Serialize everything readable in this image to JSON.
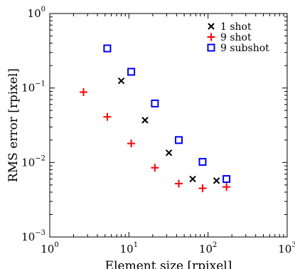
{
  "chart_data": {
    "type": "scatter",
    "title": "",
    "xlabel": "Element size [rpixel]",
    "ylabel": "RMS error [rpixel]",
    "xscale": "log",
    "yscale": "log",
    "xlim": [
      1,
      1000
    ],
    "ylim": [
      0.001,
      1
    ],
    "grid": false,
    "legend_position": "top-right",
    "x_ticks": [
      {
        "value": 1,
        "base": "10",
        "exp": "0"
      },
      {
        "value": 10,
        "base": "10",
        "exp": "1"
      },
      {
        "value": 100,
        "base": "10",
        "exp": "2"
      },
      {
        "value": 1000,
        "base": "10",
        "exp": "3"
      }
    ],
    "y_ticks": [
      {
        "value": 0.001,
        "base": "10",
        "exp": "−3"
      },
      {
        "value": 0.01,
        "base": "10",
        "exp": "−2"
      },
      {
        "value": 0.1,
        "base": "10",
        "exp": "−1"
      },
      {
        "value": 1,
        "base": "10",
        "exp": "0"
      }
    ],
    "series": [
      {
        "name": "1 shot",
        "marker": "x",
        "color": "#000000",
        "points": [
          [
            8,
            0.125
          ],
          [
            16,
            0.037
          ],
          [
            32,
            0.0135
          ],
          [
            64,
            0.006
          ],
          [
            128,
            0.0057
          ]
        ]
      },
      {
        "name": "9 shot",
        "marker": "+",
        "color": "#ff0000",
        "points": [
          [
            2.67,
            0.088
          ],
          [
            5.33,
            0.041
          ],
          [
            10.7,
            0.018
          ],
          [
            21.3,
            0.0085
          ],
          [
            42.7,
            0.0052
          ],
          [
            85.3,
            0.0045
          ],
          [
            171,
            0.0047
          ]
        ]
      },
      {
        "name": "9 subshot",
        "marker": "square",
        "color": "#0000ff",
        "points": [
          [
            5.33,
            0.34
          ],
          [
            10.7,
            0.165
          ],
          [
            21.3,
            0.062
          ],
          [
            42.7,
            0.02
          ],
          [
            85.3,
            0.0102
          ],
          [
            171,
            0.006
          ]
        ]
      }
    ]
  }
}
